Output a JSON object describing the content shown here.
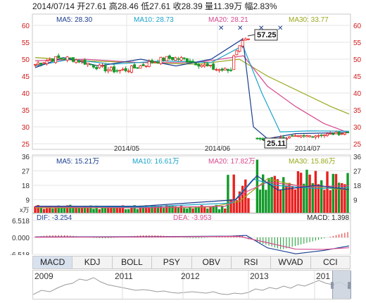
{
  "header": {
    "date": "2014/07/14",
    "open_label": "开",
    "open": "27.61",
    "high_label": "高",
    "high": "28.46",
    "low_label": "低",
    "low": "27.61",
    "close_label": "收",
    "close": "28.39",
    "volume_label": "量",
    "volume": "11.39万",
    "change_label": "幅",
    "change": "2.83%"
  },
  "price_panel": {
    "ma_labels": [
      {
        "text": "MA5: 28.30",
        "color": "#1a3d8f"
      },
      {
        "text": "MA10: 28.73",
        "color": "#1aa3c9"
      },
      {
        "text": "MA20: 28.21",
        "color": "#d64a8f"
      },
      {
        "text": "MA30: 33.77",
        "color": "#9aa81c"
      }
    ],
    "y_ticks": [
      "60",
      "55",
      "50",
      "45",
      "40",
      "35",
      "30",
      "25"
    ],
    "x_ticks": [
      "2014/05",
      "2014/06",
      "2014/07"
    ],
    "high_marker": "57.25",
    "low_marker": "25.11"
  },
  "volume_panel": {
    "ma_labels": [
      {
        "text": "MA5: 15.21万",
        "color": "#1a3d8f"
      },
      {
        "text": "MA10: 16.61万",
        "color": "#1aa3c9"
      },
      {
        "text": "MA20: 17.82万",
        "color": "#d64a8f"
      },
      {
        "text": "MA30: 15.86万",
        "color": "#9aa81c"
      }
    ],
    "y_ticks": [
      "36",
      "27",
      "18",
      "9"
    ],
    "unit": "x万"
  },
  "macd_panel": {
    "dif": "DIF: -3.254",
    "dea": "DEA: -3.953",
    "macd": "MACD: 1.398",
    "y_ticks": [
      "6.518",
      "0.000",
      "-6.518"
    ]
  },
  "tabs": [
    "MACD",
    "KDJ",
    "BOLL",
    "PSY",
    "OBV",
    "RSI",
    "WVAD",
    "CCI"
  ],
  "timeline": {
    "years": [
      "2009",
      "2011",
      "2012",
      "2013",
      "201"
    ]
  },
  "colors": {
    "up": "#e8201f",
    "down": "#129a2a",
    "ma5": "#1a3d8f",
    "ma10": "#1aa3c9",
    "ma20": "#d64a8f",
    "ma30": "#9aa81c"
  }
}
